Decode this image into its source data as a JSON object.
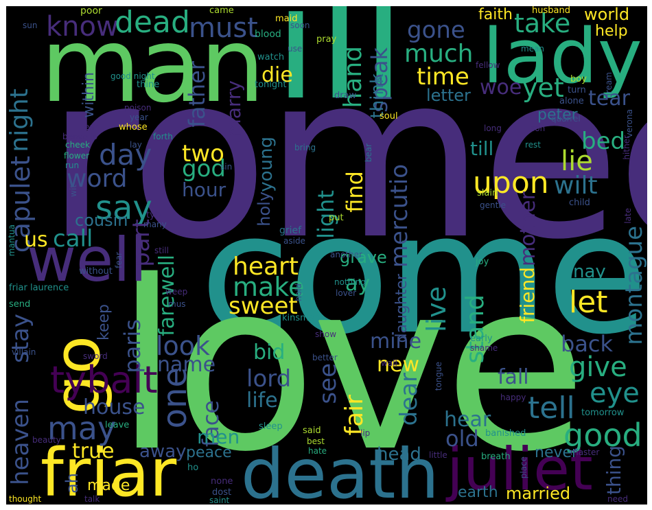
{
  "palette": {
    "purple": "#440154",
    "indigo": "#472d7b",
    "blue": "#3b528b",
    "teal_blue": "#2c728e",
    "teal": "#21918c",
    "green_teal": "#28ae80",
    "green": "#5ec962",
    "lime": "#addc30",
    "yellow": "#fde725"
  },
  "words": {
    "romeo": "romeo",
    "come": "come",
    "love": "love",
    "ill": "ill",
    "man": "man",
    "lady": "lady",
    "friar": "friar",
    "death": "death",
    "juliet": "juliet",
    "go": "go",
    "well": "well",
    "tybalt": "tybalt",
    "dead": "dead",
    "must": "must",
    "know": "know",
    "say": "say",
    "day": "day",
    "word": "word",
    "capulet": "capulet",
    "night": "night",
    "call": "call",
    "us": "us",
    "much": "much",
    "time": "time",
    "gone": "gone",
    "speak": "speak",
    "hand": "hand",
    "take": "take",
    "yet": "yet",
    "tear": "tear",
    "upon": "upon",
    "lie": "lie",
    "bed": "bed",
    "wilt": "wilt",
    "till": "till",
    "two": "two",
    "god": "god",
    "hour": "hour",
    "heart": "heart",
    "make": "make",
    "sweet": "sweet",
    "let": "let",
    "ay": "ay",
    "grave": "grave",
    "look": "look",
    "name": "name",
    "back": "back",
    "give": "give",
    "eye": "eye",
    "tell": "tell",
    "good": "good",
    "new": "new",
    "mine": "mine",
    "bid": "bid",
    "lord": "lord",
    "life": "life",
    "house": "house",
    "may": "may",
    "one": "one",
    "face": "face",
    "true": "true",
    "away": "away",
    "peace": "peace",
    "men": "men",
    "old": "old",
    "hear": "hear",
    "head": "head",
    "never": "never",
    "thing": "thing",
    "married": "married",
    "earth": "earth",
    "made": "made",
    "ah": "ah",
    "heaven": "heaven",
    "stay": "stay",
    "paris": "paris",
    "farewell": "farewell",
    "part": "part",
    "cousin": "cousin",
    "light": "light",
    "find": "find",
    "mercutio": "mercutio",
    "mother": "mother",
    "friend": "friend",
    "montague": "montague",
    "nay": "nay",
    "fall": "fall",
    "see": "see",
    "fair": "fair",
    "dear": "dear",
    "live": "live",
    "stand": "stand",
    "daughter": "daughter",
    "father": "father",
    "marry": "marry",
    "die": "die",
    "young": "young",
    "holy": "holy",
    "think": "think",
    "woe": "woe",
    "letter": "letter",
    "faith": "faith",
    "world": "world",
    "help": "help",
    "within": "within",
    "keep": "keep",
    "peter": "peter",
    "poor": "poor",
    "came": "came",
    "husband": "husband",
    "maid": "maid",
    "sun": "sun",
    "soon": "soon",
    "blood": "blood",
    "pray": "pray",
    "use": "use",
    "fellow": "fellow",
    "mean": "mean",
    "watch": "watch",
    "good_night": "good night",
    "thine": "thine",
    "tonight": "tonight",
    "draw": "draw",
    "soul": "soul",
    "turn": "turn",
    "boy": "boy",
    "dream": "dream",
    "alone": "alone",
    "poison": "poison",
    "year": "year",
    "whose": "whose",
    "ear": "ear",
    "verona": "verona",
    "benvolio": "benvolio",
    "forth": "forth",
    "cheek": "cheek",
    "lay": "lay",
    "quarrel": "quarrel",
    "son": "son",
    "long": "long",
    "bring": "bring",
    "bear": "bear",
    "rest": "rest",
    "hither": "hither",
    "flower": "flower",
    "run": "run",
    "sin": "sin",
    "slain": "slain",
    "gentle": "gentle",
    "child": "child",
    "wit": "wit",
    "tyb": "tyb",
    "many": "many",
    "put": "put",
    "grief": "grief",
    "aside": "aside",
    "late": "late",
    "mantua": "mantua",
    "still": "still",
    "fear": "fear",
    "friar_laurence": "friar laurence",
    "without": "without",
    "another": "another",
    "nothing": "nothing",
    "joy": "joy",
    "weep": "weep",
    "mus": "mus",
    "hold": "hold",
    "lover": "lover",
    "send": "send",
    "kinsman": "kinsman",
    "show": "show",
    "early": "early",
    "shame": "shame",
    "villain": "villain",
    "sword": "sword",
    "better": "better",
    "wall": "wall",
    "tongue": "tongue",
    "happy": "happy",
    "tomorrow": "tomorrow",
    "beauty": "beauty",
    "leave": "leave",
    "sleep": "sleep",
    "said": "said",
    "best": "best",
    "hate": "hate",
    "lip": "lip",
    "banished": "banished",
    "little": "little",
    "breath": "breath",
    "master": "master",
    "place": "place",
    "ho": "ho",
    "none": "none",
    "dost": "dost",
    "saint": "saint",
    "talk": "talk",
    "thought": "thought",
    "need": "need"
  }
}
